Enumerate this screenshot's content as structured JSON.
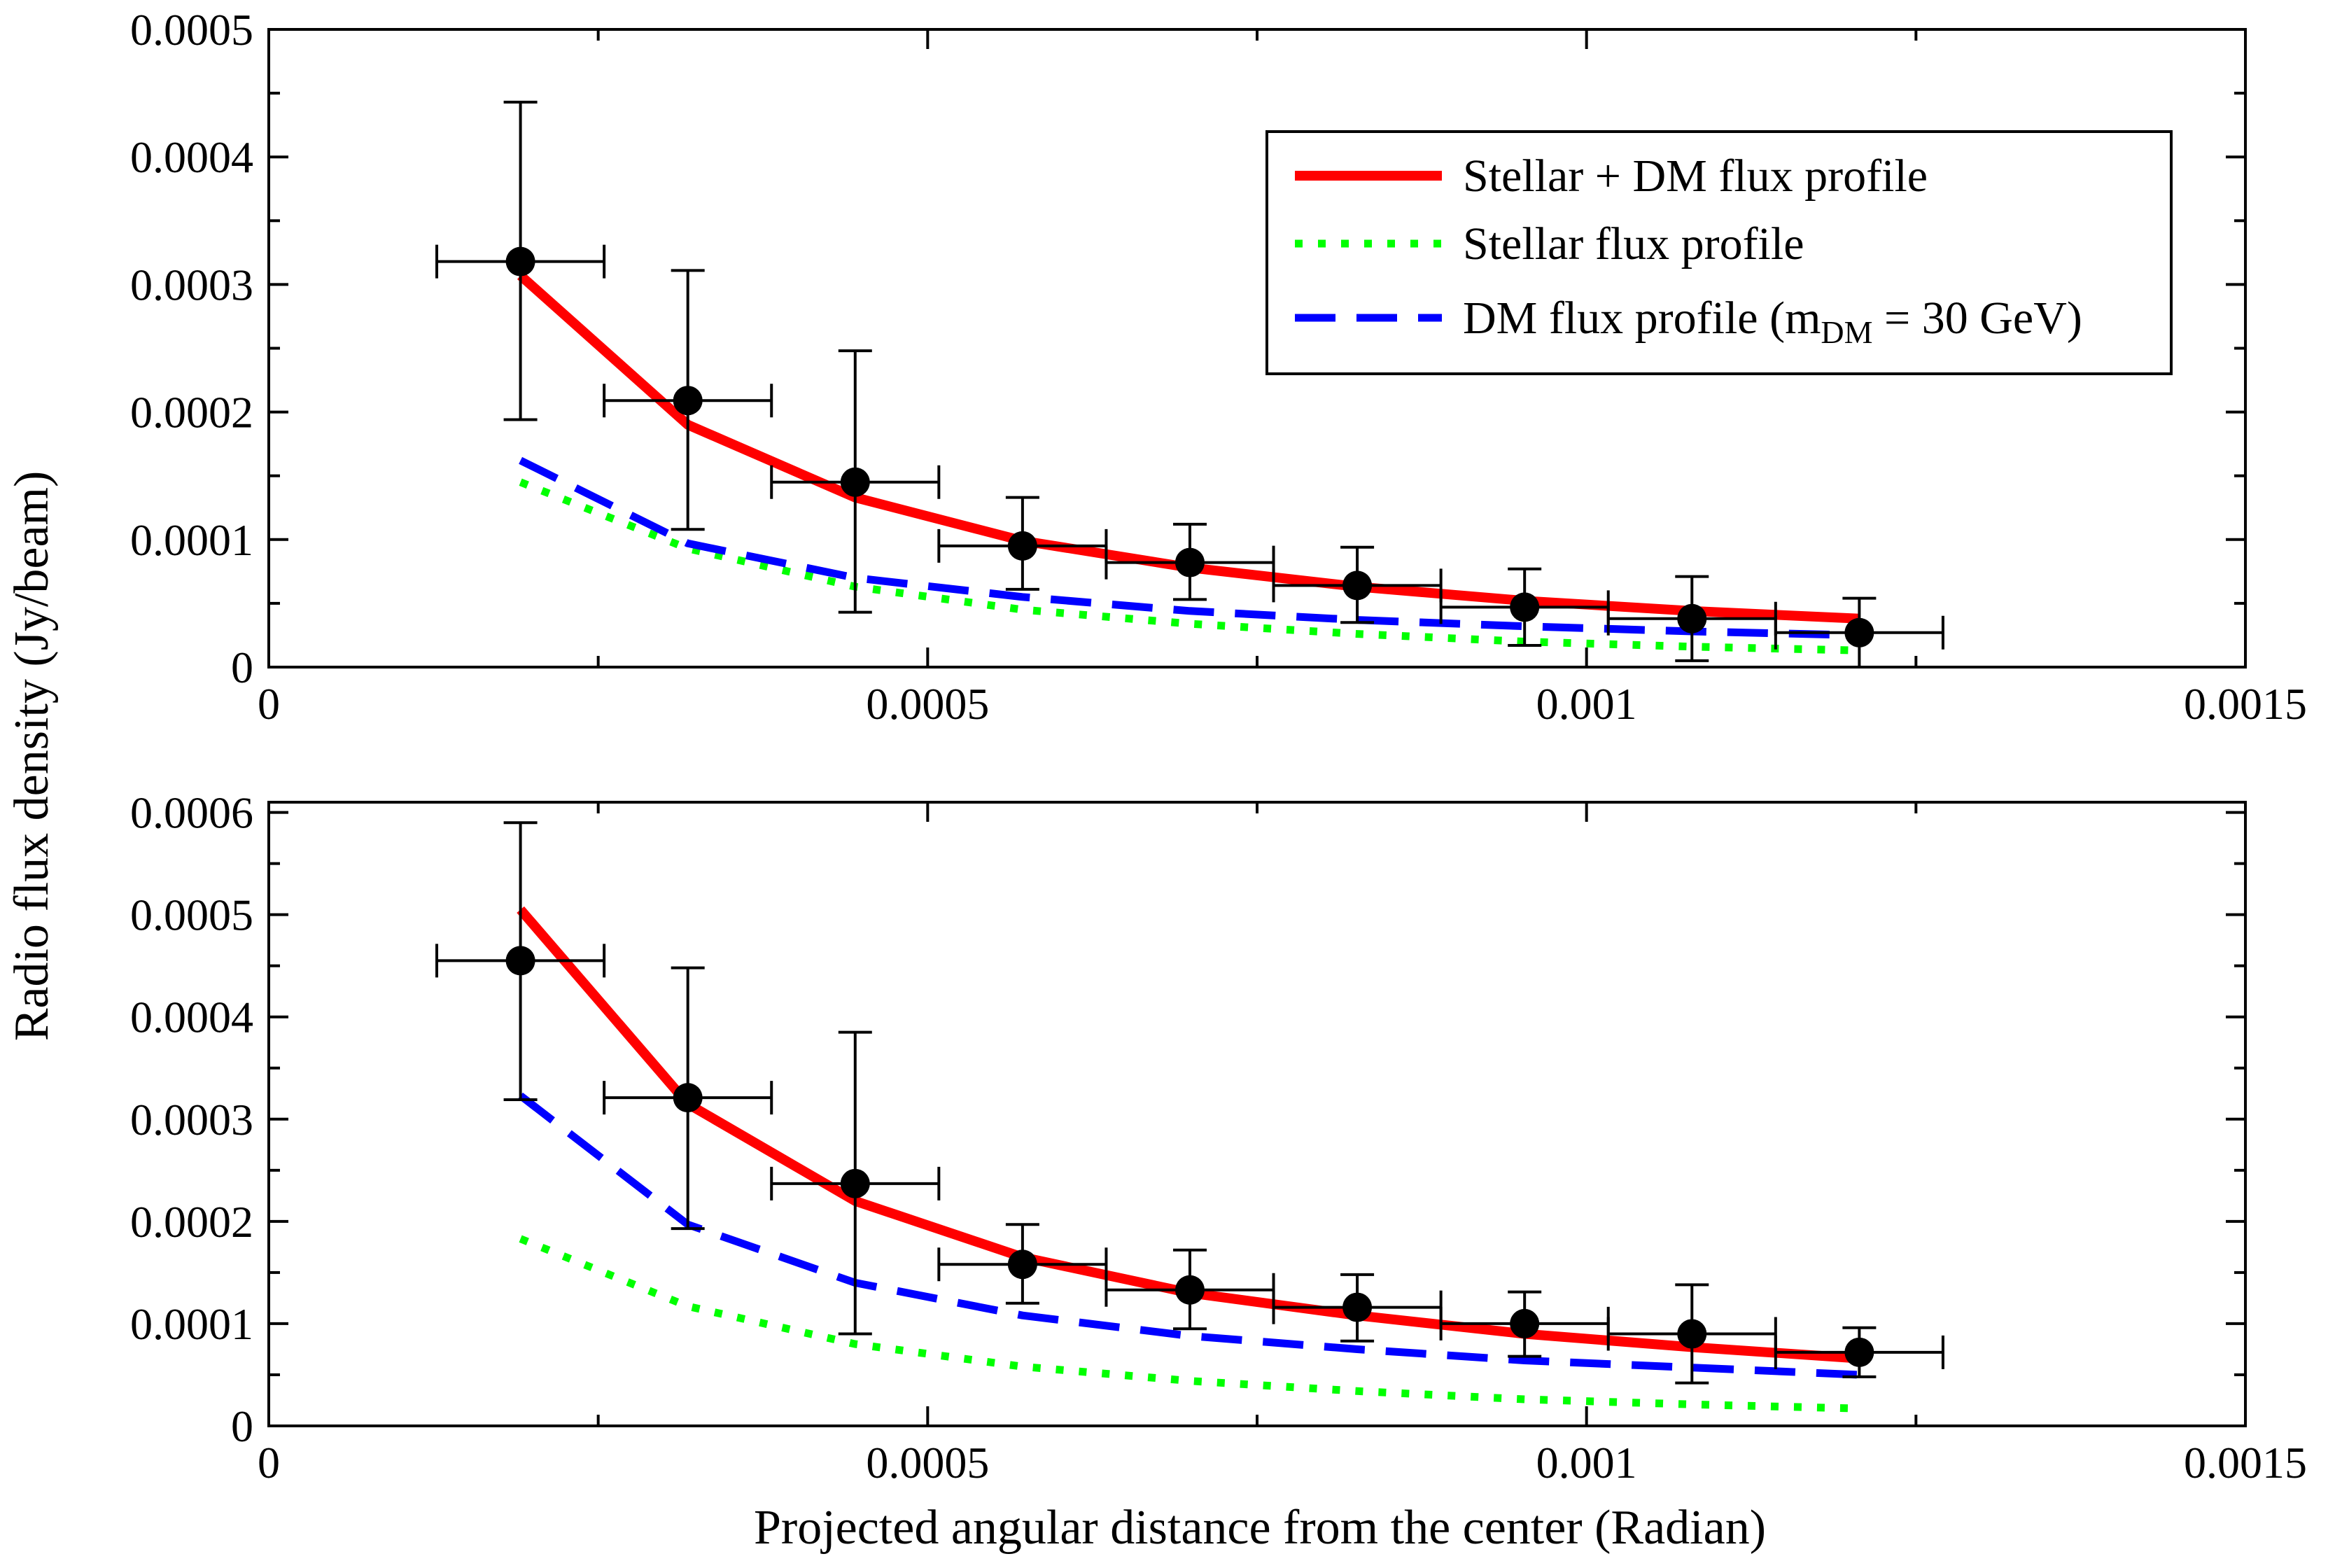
{
  "chart_data": [
    {
      "type": "line",
      "panel": "top",
      "xlabel": "",
      "ylabel": "Radio flux density (Jy/beam)",
      "xlim": [
        0,
        0.0015
      ],
      "ylim": [
        0,
        0.0005
      ],
      "xticks": [
        0,
        0.0005,
        0.001,
        0.0015
      ],
      "xtick_labels": [
        "0",
        "0.0005",
        "0.001",
        "0.0015"
      ],
      "yticks": [
        0,
        0.0001,
        0.0002,
        0.0003,
        0.0004,
        0.0005
      ],
      "ytick_labels": [
        "0",
        "0.0001",
        "0.0002",
        "0.0003",
        "0.0004",
        "0.0005"
      ],
      "x": [
        0.000191,
        0.000318,
        0.000445,
        0.000572,
        0.000699,
        0.000826,
        0.000953,
        0.00108,
        0.001207
      ],
      "observed": {
        "y": [
          0.000318,
          0.000209,
          0.000145,
          9.5e-05,
          8.2e-05,
          6.4e-05,
          4.7e-05,
          3.8e-05,
          2.7e-05
        ],
        "yerr_low": [
          0.000194,
          0.000108,
          4.3e-05,
          6.1e-05,
          5.3e-05,
          3.5e-05,
          1.7e-05,
          5e-06,
          0.0
        ],
        "yerr_high": [
          0.000443,
          0.000311,
          0.000248,
          0.000133,
          0.000112,
          9.4e-05,
          7.7e-05,
          7.1e-05,
          5.4e-05
        ],
        "xerr": 6.35e-05
      },
      "series": [
        {
          "name": "Stellar + DM flux profile",
          "color": "#ff0000",
          "style": "solid",
          "values": [
            0.000307,
            0.00019,
            0.000133,
            9.9e-05,
            7.8e-05,
            6.3e-05,
            5.2e-05,
            4.4e-05,
            3.8e-05
          ]
        },
        {
          "name": "Stellar flux profile",
          "color": "#00ff00",
          "style": "dotted",
          "values": [
            0.000145,
            9.3e-05,
            6.3e-05,
            4.5e-05,
            3.4e-05,
            2.6e-05,
            2e-05,
            1.6e-05,
            1.3e-05
          ]
        },
        {
          "name": "DM flux profile",
          "color": "#0000ff",
          "style": "dashed",
          "values": [
            0.000162,
            9.7e-05,
            7e-05,
            5.5e-05,
            4.4e-05,
            3.7e-05,
            3.2e-05,
            2.8e-05,
            2.5e-05
          ]
        }
      ],
      "legend": {
        "placement": "top-right",
        "entries": [
          "Stellar + DM flux profile",
          "Stellar flux profile",
          "DM flux profile (m"
        ],
        "dm_subscript": "DM",
        "dm_suffix": " = 30 GeV)"
      }
    },
    {
      "type": "line",
      "panel": "bottom",
      "xlabel": "Projected angular distance from the center (Radian)",
      "ylabel": "Radio flux density (Jy/beam)",
      "xlim": [
        0,
        0.0015
      ],
      "ylim": [
        0,
        0.00061
      ],
      "xticks": [
        0,
        0.0005,
        0.001,
        0.0015
      ],
      "xtick_labels": [
        "0",
        "0.0005",
        "0.001",
        "0.0015"
      ],
      "yticks": [
        0,
        0.0001,
        0.0002,
        0.0003,
        0.0004,
        0.0005,
        0.0006
      ],
      "ytick_labels": [
        "0",
        "0.0001",
        "0.0002",
        "0.0003",
        "0.0004",
        "0.0005",
        "0.0006"
      ],
      "x": [
        0.000191,
        0.000318,
        0.000445,
        0.000572,
        0.000699,
        0.000826,
        0.000953,
        0.00108,
        0.001207
      ],
      "observed": {
        "y": [
          0.000455,
          0.000321,
          0.000237,
          0.000158,
          0.000133,
          0.000116,
          0.0001,
          9e-05,
          7.2e-05
        ],
        "yerr_low": [
          0.000319,
          0.000193,
          9e-05,
          0.00012,
          9.5e-05,
          8.3e-05,
          6.8e-05,
          4.2e-05,
          4.8e-05
        ],
        "yerr_high": [
          0.00059,
          0.000448,
          0.000385,
          0.000197,
          0.000172,
          0.000148,
          0.000131,
          0.000138,
          9.6e-05
        ],
        "xerr": 6.35e-05
      },
      "series": [
        {
          "name": "Stellar + DM flux profile",
          "color": "#ff0000",
          "style": "solid",
          "values": [
            0.000505,
            0.000315,
            0.00022,
            0.000165,
            0.00013,
            0.000108,
            9e-05,
            7.7e-05,
            6.6e-05
          ]
        },
        {
          "name": "Stellar flux profile",
          "color": "#00ff00",
          "style": "dotted",
          "values": [
            0.000183,
            0.000117,
            8e-05,
            5.8e-05,
            4.4e-05,
            3.4e-05,
            2.6e-05,
            2.1e-05,
            1.7e-05
          ]
        },
        {
          "name": "DM flux profile",
          "color": "#0000ff",
          "style": "dashed",
          "values": [
            0.000323,
            0.000197,
            0.00014,
            0.000108,
            8.8e-05,
            7.5e-05,
            6.4e-05,
            5.7e-05,
            5e-05
          ]
        }
      ]
    }
  ]
}
